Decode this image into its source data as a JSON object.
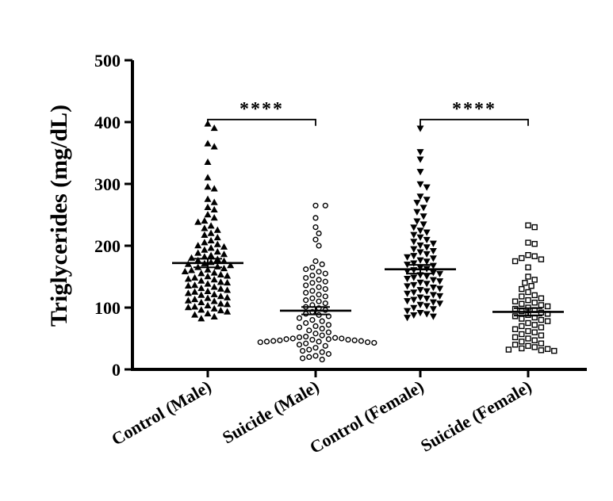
{
  "chart_data": {
    "type": "scatter",
    "title": "",
    "xlabel": "",
    "ylabel": "Triglycerides (mg/dL)",
    "ylim": [
      0,
      500
    ],
    "yticks": [
      0,
      100,
      200,
      300,
      400,
      500
    ],
    "categories": [
      "Control (Male)",
      "Suicide (Male)",
      "Control (Female)",
      "Suicide (Female)"
    ],
    "series": [
      {
        "name": "Control (Male)",
        "marker": "triangle-up",
        "fill": "#000000",
        "mean": 172,
        "sem": 7,
        "values": [
          397,
          390,
          365,
          360,
          335,
          310,
          295,
          292,
          275,
          270,
          262,
          258,
          250,
          245,
          240,
          238,
          232,
          228,
          225,
          220,
          217,
          213,
          208,
          205,
          202,
          200,
          198,
          196,
          193,
          190,
          188,
          186,
          184,
          182,
          180,
          178,
          176,
          175,
          173,
          171,
          170,
          168,
          166,
          165,
          163,
          161,
          160,
          158,
          156,
          155,
          153,
          151,
          150,
          148,
          146,
          145,
          143,
          141,
          140,
          138,
          136,
          135,
          133,
          131,
          130,
          128,
          126,
          125,
          123,
          121,
          120,
          118,
          116,
          115,
          113,
          111,
          110,
          108,
          106,
          105,
          103,
          101,
          100,
          98,
          96,
          95,
          93,
          90,
          88,
          85,
          82
        ]
      },
      {
        "name": "Suicide (Male)",
        "marker": "circle-open",
        "fill": "#ffffff",
        "mean": 95,
        "sem": 6,
        "values": [
          265,
          265,
          245,
          230,
          220,
          210,
          200,
          175,
          170,
          165,
          162,
          158,
          155,
          152,
          148,
          145,
          142,
          140,
          136,
          133,
          130,
          127,
          124,
          121,
          118,
          115,
          112,
          110,
          107,
          104,
          101,
          99,
          96,
          93,
          90,
          88,
          86,
          83,
          80,
          78,
          75,
          72,
          70,
          68,
          66,
          63,
          60,
          58,
          55,
          53,
          52,
          51,
          50,
          50,
          49,
          49,
          48,
          48,
          47,
          47,
          46,
          46,
          45,
          45,
          44,
          44,
          43,
          42,
          40,
          38,
          35,
          32,
          30,
          28,
          25,
          22,
          20,
          18,
          16
        ]
      },
      {
        "name": "Control (Female)",
        "marker": "triangle-down",
        "fill": "#000000",
        "mean": 162,
        "sem": 7,
        "values": [
          390,
          352,
          340,
          320,
          300,
          295,
          280,
          275,
          270,
          262,
          255,
          248,
          240,
          235,
          230,
          225,
          222,
          218,
          214,
          210,
          207,
          204,
          201,
          198,
          195,
          192,
          190,
          187,
          184,
          182,
          180,
          177,
          175,
          172,
          170,
          168,
          165,
          163,
          161,
          159,
          157,
          155,
          153,
          151,
          149,
          147,
          145,
          143,
          141,
          139,
          137,
          135,
          133,
          131,
          129,
          127,
          125,
          123,
          121,
          119,
          117,
          115,
          113,
          111,
          109,
          107,
          105,
          103,
          100,
          98,
          95,
          92,
          90,
          88,
          86,
          84
        ]
      },
      {
        "name": "Suicide (Female)",
        "marker": "square-open",
        "fill": "#ffffff",
        "mean": 93,
        "sem": 6,
        "values": [
          233,
          230,
          205,
          203,
          185,
          183,
          180,
          178,
          175,
          165,
          150,
          145,
          140,
          135,
          130,
          125,
          120,
          118,
          115,
          112,
          110,
          108,
          106,
          104,
          102,
          100,
          98,
          96,
          94,
          92,
          90,
          88,
          86,
          84,
          82,
          80,
          78,
          75,
          72,
          70,
          68,
          65,
          62,
          60,
          57,
          55,
          52,
          50,
          47,
          45,
          42,
          40,
          38,
          36,
          34,
          33,
          32,
          31,
          30
        ]
      }
    ],
    "annotations": [
      {
        "text": "****",
        "from": "Control (Male)",
        "to": "Suicide (Male)",
        "y": 440
      },
      {
        "text": "****",
        "from": "Control (Female)",
        "to": "Suicide (Female)",
        "y": 440
      }
    ]
  }
}
